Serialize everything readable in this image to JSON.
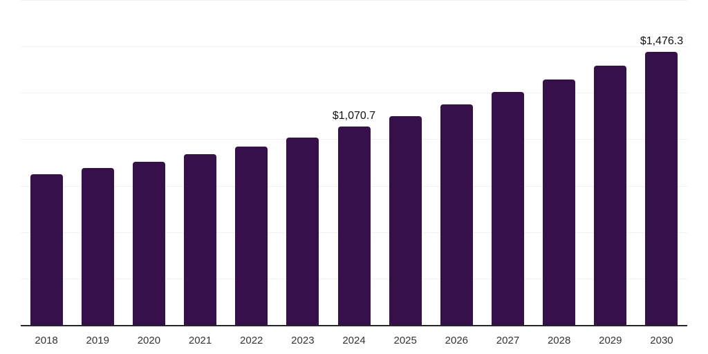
{
  "chart_data": {
    "type": "bar",
    "title": "",
    "xlabel": "",
    "ylabel": "",
    "categories": [
      "2018",
      "2019",
      "2020",
      "2021",
      "2022",
      "2023",
      "2024",
      "2025",
      "2026",
      "2027",
      "2028",
      "2029",
      "2030"
    ],
    "values": [
      815.2,
      848.4,
      881.6,
      922.1,
      966.4,
      1014.3,
      1070.7,
      1129.6,
      1191.7,
      1257.2,
      1326.3,
      1399.2,
      1476.3
    ],
    "data_labels": [
      {
        "category": "2024",
        "text": "$1,070.7"
      },
      {
        "category": "2030",
        "text": "$1,476.3"
      }
    ],
    "ylim": [
      0,
      1750
    ],
    "gridline_step": 250,
    "grid": true,
    "legend_position": "none",
    "y_axis_tick_labels_visible": false,
    "colors": {
      "bar": "#36104a",
      "gridline": "#f1f1f1",
      "axis_line": "#262626",
      "tick_label": "#333333",
      "data_label": "#111111",
      "background": "#ffffff"
    }
  }
}
